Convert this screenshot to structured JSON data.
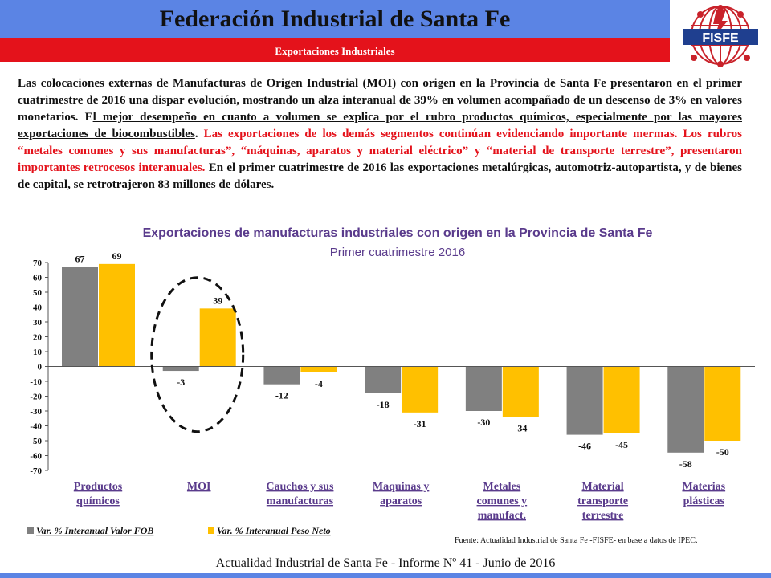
{
  "header": {
    "title": "Federación Industrial de Santa Fe",
    "subtitle": "Exportaciones Industriales",
    "logo_text": "FISFE"
  },
  "intro": {
    "p1": "Las colocaciones externas de Manufacturas de Origen Industrial (MOI) con origen en la Provincia de Santa Fe presentaron en el primer cuatrimestre de 2016 una dispar evolución, mostrando un alza interanual de 39% en volumen acompañado de un descenso de 3% en valores monetarios. E",
    "p2": "l mejor desempeño en cuanto a volumen se explica por el rubro productos químicos, especialmente por las mayores exportaciones de biocombustibles",
    "p3": ". ",
    "p4": "Las exportaciones de los demás segmentos continúan evidenciando importante mermas. Los rubros “metales comunes y sus manufacturas”, “máquinas, aparatos y material eléctrico” y “material de transporte terrestre”, presentaron importantes retrocesos interanuales.",
    "p5": "  En el primer cuatrimestre de 2016 las exportaciones metalúrgicas, automotriz-autopartista, y de bienes de capital, se retrotrajeron 83 millones de dólares."
  },
  "chart_data": {
    "type": "bar",
    "title": "Exportaciones de manufacturas industriales con origen en la Provincia de Santa Fe",
    "subtitle": "Primer cuatrimestre 2016",
    "categories": [
      [
        "Productos",
        "químicos"
      ],
      [
        "MOI"
      ],
      [
        "Cauchos y sus",
        "manufacturas"
      ],
      [
        "Maquinas y",
        "aparatos"
      ],
      [
        "Metales",
        "comunes y",
        "manufact."
      ],
      [
        "Material",
        "transporte",
        "terrestre"
      ],
      [
        "Materias",
        "plásticas"
      ]
    ],
    "series": [
      {
        "name": "Var. % Interanual Valor FOB",
        "values": [
          67,
          -3,
          -12,
          -18,
          -30,
          -46,
          -58
        ],
        "color": "#808080"
      },
      {
        "name": "Var. % Interanual Peso Neto",
        "values": [
          69,
          39,
          -4,
          -31,
          -34,
          -45,
          -50
        ],
        "color": "#ffc000"
      }
    ],
    "ylim": [
      -70,
      70
    ],
    "yticks": [
      70,
      60,
      50,
      40,
      30,
      20,
      10,
      0,
      -10,
      -20,
      -30,
      -40,
      -50,
      -60,
      -70
    ],
    "legend_position": "bottom-left",
    "highlight_category": "MOI"
  },
  "source": "Fuente: Actualidad Industrial de Santa Fe -FISFE- en base a datos de IPEC.",
  "footer": "Actualidad Industrial de Santa Fe - Informe Nº 41 - Junio de 2016",
  "colors": {
    "blue": "#5b84e4",
    "red": "#e4121b",
    "purple": "#5a3b8c"
  }
}
